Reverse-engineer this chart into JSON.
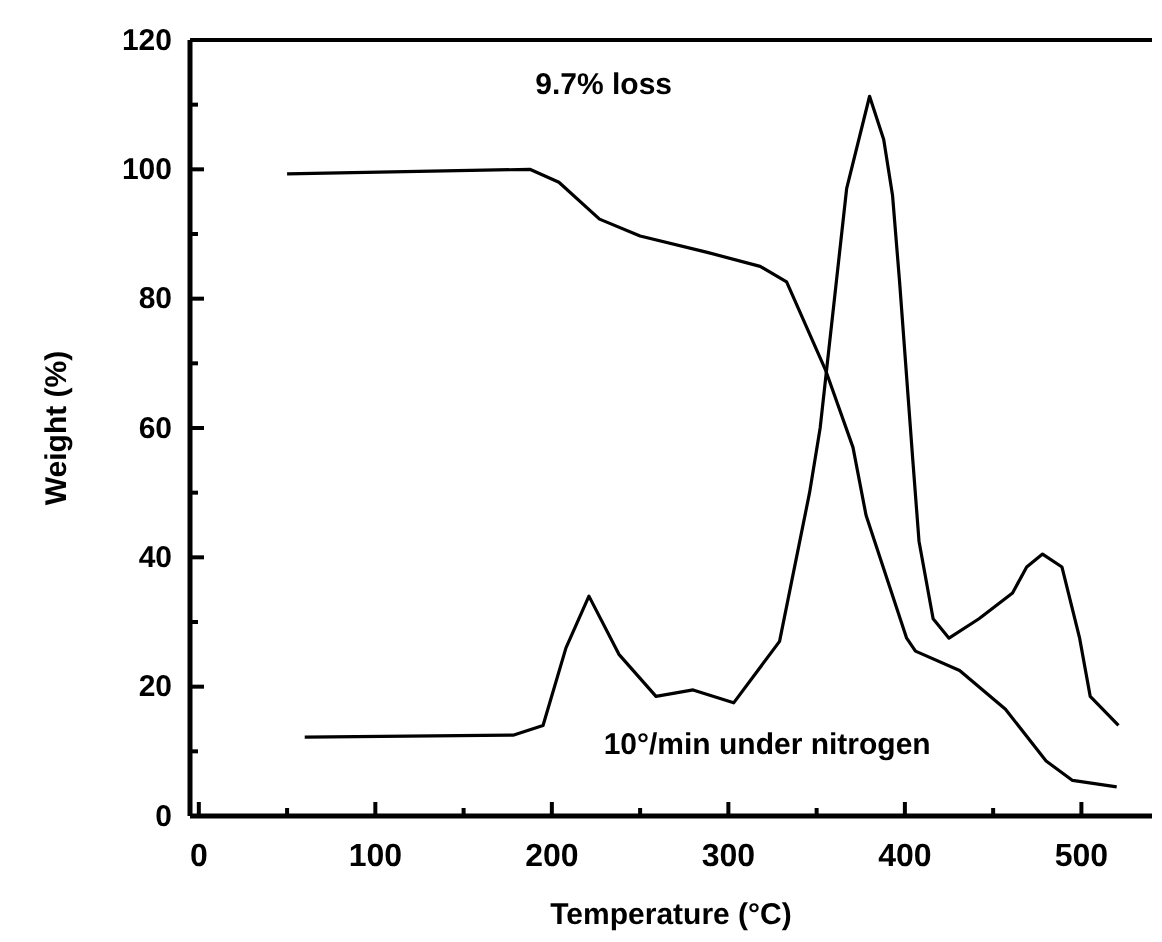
{
  "chart_data": {
    "type": "line",
    "xlabel": "Temperature (°C)",
    "ylabel": "Weight (%)",
    "xlim": [
      -5,
      540
    ],
    "ylim": [
      0,
      120
    ],
    "xticks": [
      0,
      {
        "value": 50,
        "label": null
      },
      100,
      {
        "value": 150,
        "label": null
      },
      200,
      {
        "value": 250,
        "label": null
      },
      300,
      {
        "value": 350,
        "label": null
      },
      400,
      {
        "value": 450,
        "label": null
      },
      500
    ],
    "yticks": [
      0,
      {
        "value": 10,
        "label": null
      },
      20,
      {
        "value": 30,
        "label": null
      },
      40,
      {
        "value": 50,
        "label": null
      },
      60,
      {
        "value": 70,
        "label": null
      },
      80,
      {
        "value": 90,
        "label": null
      },
      100,
      {
        "value": 110,
        "label": null
      },
      120
    ],
    "grid": false,
    "marker": "none",
    "line_style": "solid",
    "annotations": [
      "9.7% loss",
      "10°/min under nitrogen"
    ],
    "series": [
      {
        "color": "#000000",
        "x": [
          50,
          187.5,
          204,
          227,
          250,
          287.5,
          318,
          333,
          355,
          370.6,
          378,
          401,
          406,
          431,
          457,
          480,
          495,
          520
        ],
        "values": [
          99.3,
          100,
          98,
          92.3,
          89.7,
          87.2,
          85,
          82.6,
          69,
          57,
          46.5,
          27.5,
          25.5,
          22.5,
          16.5,
          8.5,
          5.5,
          4.5
        ]
      },
      {
        "color": "#000000",
        "x": [
          60,
          178,
          195,
          208,
          221,
          238,
          259,
          280,
          303,
          329,
          346,
          352,
          367,
          380,
          388,
          393,
          397,
          404.5,
          408,
          416,
          425,
          442,
          461,
          469,
          478,
          489,
          499,
          505,
          521
        ],
        "values": [
          12.2,
          12.5,
          14,
          26,
          34,
          25,
          18.5,
          19.5,
          17.5,
          27,
          50,
          60,
          97,
          111.3,
          104.6,
          96,
          82.6,
          55,
          42.5,
          30.5,
          27.5,
          30.5,
          34.5,
          38.5,
          40.5,
          38.5,
          27.5,
          18.5,
          14
        ]
      }
    ]
  }
}
